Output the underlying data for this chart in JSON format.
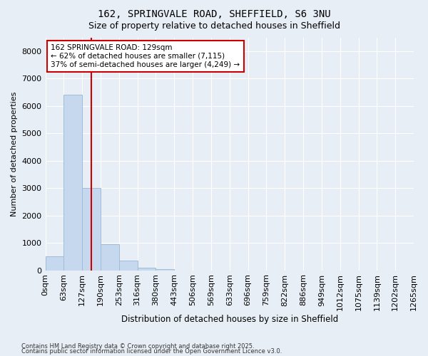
{
  "title_line1": "162, SPRINGVALE ROAD, SHEFFIELD, S6 3NU",
  "title_line2": "Size of property relative to detached houses in Sheffield",
  "xlabel": "Distribution of detached houses by size in Sheffield",
  "ylabel": "Number of detached properties",
  "bar_color": "#c5d8ed",
  "bar_edge_color": "#a0bcd8",
  "background_color": "#e8eef5",
  "grid_color": "#ffffff",
  "tick_labels": [
    "0sqm",
    "63sqm",
    "127sqm",
    "190sqm",
    "253sqm",
    "316sqm",
    "380sqm",
    "443sqm",
    "506sqm",
    "569sqm",
    "633sqm",
    "696sqm",
    "759sqm",
    "822sqm",
    "886sqm",
    "949sqm",
    "1012sqm",
    "1075sqm",
    "1139sqm",
    "1202sqm",
    "1265sqm"
  ],
  "bar_values": [
    500,
    6400,
    3000,
    950,
    350,
    100,
    30,
    0,
    0,
    0,
    0,
    0,
    0,
    0,
    0,
    0,
    0,
    0,
    0,
    0
  ],
  "ylim": [
    0,
    8500
  ],
  "yticks": [
    0,
    1000,
    2000,
    3000,
    4000,
    5000,
    6000,
    7000,
    8000
  ],
  "property_line_x": 2,
  "annotation_title": "162 SPRINGVALE ROAD: 129sqm",
  "annotation_line1": "← 62% of detached houses are smaller (7,115)",
  "annotation_line2": "37% of semi-detached houses are larger (4,249) →",
  "annotation_box_color": "#ffffff",
  "annotation_border_color": "#cc0000",
  "red_line_color": "#cc0000",
  "footer_line1": "Contains HM Land Registry data © Crown copyright and database right 2025.",
  "footer_line2": "Contains public sector information licensed under the Open Government Licence v3.0."
}
